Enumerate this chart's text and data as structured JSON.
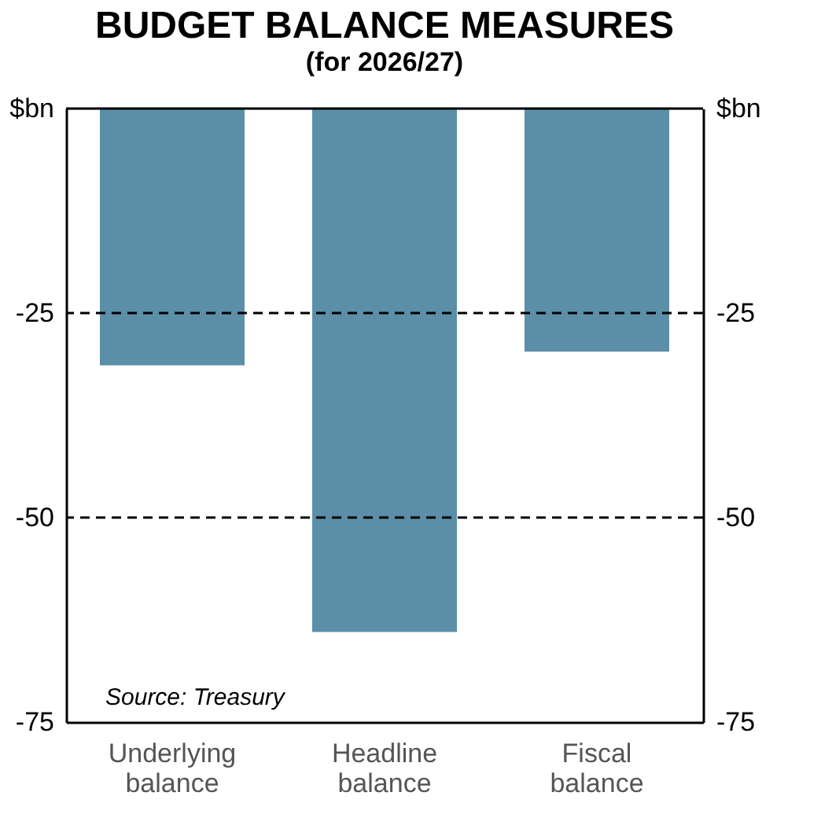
{
  "chart_data": {
    "type": "bar",
    "title": "BUDGET BALANCE MEASURES",
    "subtitle": "(for 2026/27)",
    "categories": [
      "Underlying balance",
      "Headline balance",
      "Fiscal balance"
    ],
    "values": [
      -31.4,
      -64.0,
      -29.7
    ],
    "color": "#5b8fa8",
    "ylim": [
      -75,
      0
    ],
    "yticks": [
      {
        "value": 0,
        "label": "$bn"
      },
      -25,
      -50,
      -75
    ],
    "y2lim": [
      -75,
      0
    ],
    "y2ticks": [
      {
        "value": 0,
        "label": "$bn"
      },
      -25,
      -50,
      -75
    ],
    "ref_lines": [
      {
        "axis": "y",
        "value": 0,
        "line_style": "solid"
      },
      {
        "axis": "y",
        "value": -25,
        "line_style": "dashed"
      },
      {
        "axis": "y",
        "value": -50,
        "line_style": "dashed"
      }
    ],
    "annotations": [
      "Source: Treasury"
    ]
  }
}
